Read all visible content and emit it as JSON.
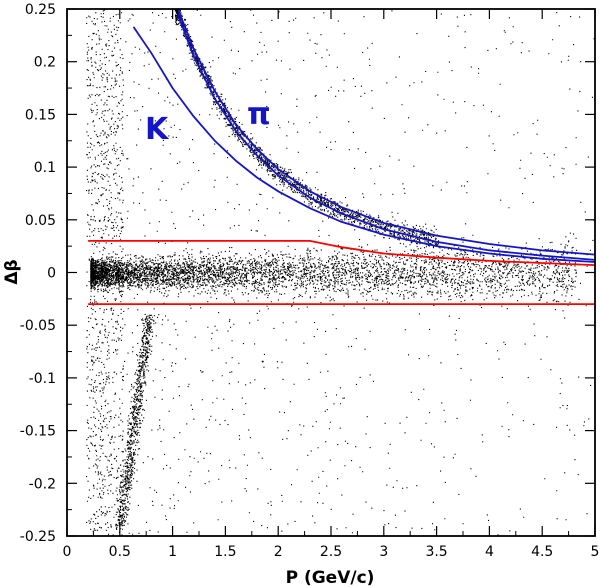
{
  "chart_data": {
    "type": "scatter",
    "title": "",
    "xlabel": "P (GeV/c)",
    "ylabel": "Δβ",
    "xlim": [
      0,
      5
    ],
    "ylim": [
      -0.25,
      0.25
    ],
    "x_ticks": [
      "0",
      "0.5",
      "1",
      "1.5",
      "2",
      "2.5",
      "3",
      "3.5",
      "4",
      "4.5",
      "5"
    ],
    "y_ticks": [
      "0.25",
      "0.2",
      "0.15",
      "0.1",
      "0.05",
      "0",
      "-0.05",
      "-0.1",
      "-0.15",
      "-0.2",
      "-0.25"
    ],
    "grid": false,
    "colors": {
      "points": "#000000",
      "curves": "#1515c8",
      "cut": "#ff0000"
    },
    "curves": [
      {
        "label": "π",
        "x": [
          1.05,
          1.2,
          1.4,
          1.6,
          1.8,
          2.0,
          2.3,
          2.6,
          3.0,
          3.5,
          4.0,
          4.5,
          5.0
        ],
        "y": [
          0.25,
          0.212,
          0.172,
          0.14,
          0.117,
          0.098,
          0.077,
          0.062,
          0.047,
          0.035,
          0.027,
          0.021,
          0.017
        ]
      },
      {
        "label": "",
        "x": [
          1.05,
          1.2,
          1.4,
          1.6,
          1.8,
          2.0,
          2.3,
          2.6,
          3.0,
          3.5,
          4.0,
          4.5,
          5.0
        ],
        "y": [
          0.245,
          0.205,
          0.165,
          0.134,
          0.111,
          0.092,
          0.071,
          0.056,
          0.041,
          0.029,
          0.021,
          0.016,
          0.012
        ]
      },
      {
        "label": "K",
        "x": [
          0.63,
          0.8,
          1.0,
          1.2,
          1.4,
          1.6,
          1.8,
          2.0,
          2.3,
          2.6,
          3.0,
          3.5,
          4.0,
          4.5,
          5.0
        ],
        "y": [
          0.233,
          0.208,
          0.175,
          0.148,
          0.125,
          0.106,
          0.09,
          0.077,
          0.061,
          0.048,
          0.036,
          0.025,
          0.018,
          0.013,
          0.01
        ]
      }
    ],
    "cut_lines": [
      {
        "x": [
          0.2,
          2.3,
          2.6,
          3.0,
          3.5,
          4.0,
          4.5,
          5.0
        ],
        "y": [
          0.03,
          0.03,
          0.024,
          0.018,
          0.014,
          0.011,
          0.009,
          0.007
        ]
      },
      {
        "x": [
          0.2,
          5.0
        ],
        "y": [
          -0.03,
          -0.03
        ]
      }
    ],
    "scatter_bands": [
      {
        "name": "pions",
        "x_range": [
          0.2,
          5.0
        ],
        "y_center": 0,
        "y_width": 0.012,
        "density": "high"
      },
      {
        "name": "pi-band",
        "follows_curve": "π",
        "x_range": [
          1.05,
          3.4
        ],
        "density": "medium"
      },
      {
        "name": "kaon-diagonal",
        "x_range": [
          0.45,
          0.85
        ],
        "y_range": [
          -0.24,
          -0.05
        ],
        "density": "medium"
      },
      {
        "name": "background",
        "x_range": [
          0.2,
          5.0
        ],
        "y_range": [
          -0.25,
          0.25
        ],
        "density": "low"
      }
    ]
  }
}
